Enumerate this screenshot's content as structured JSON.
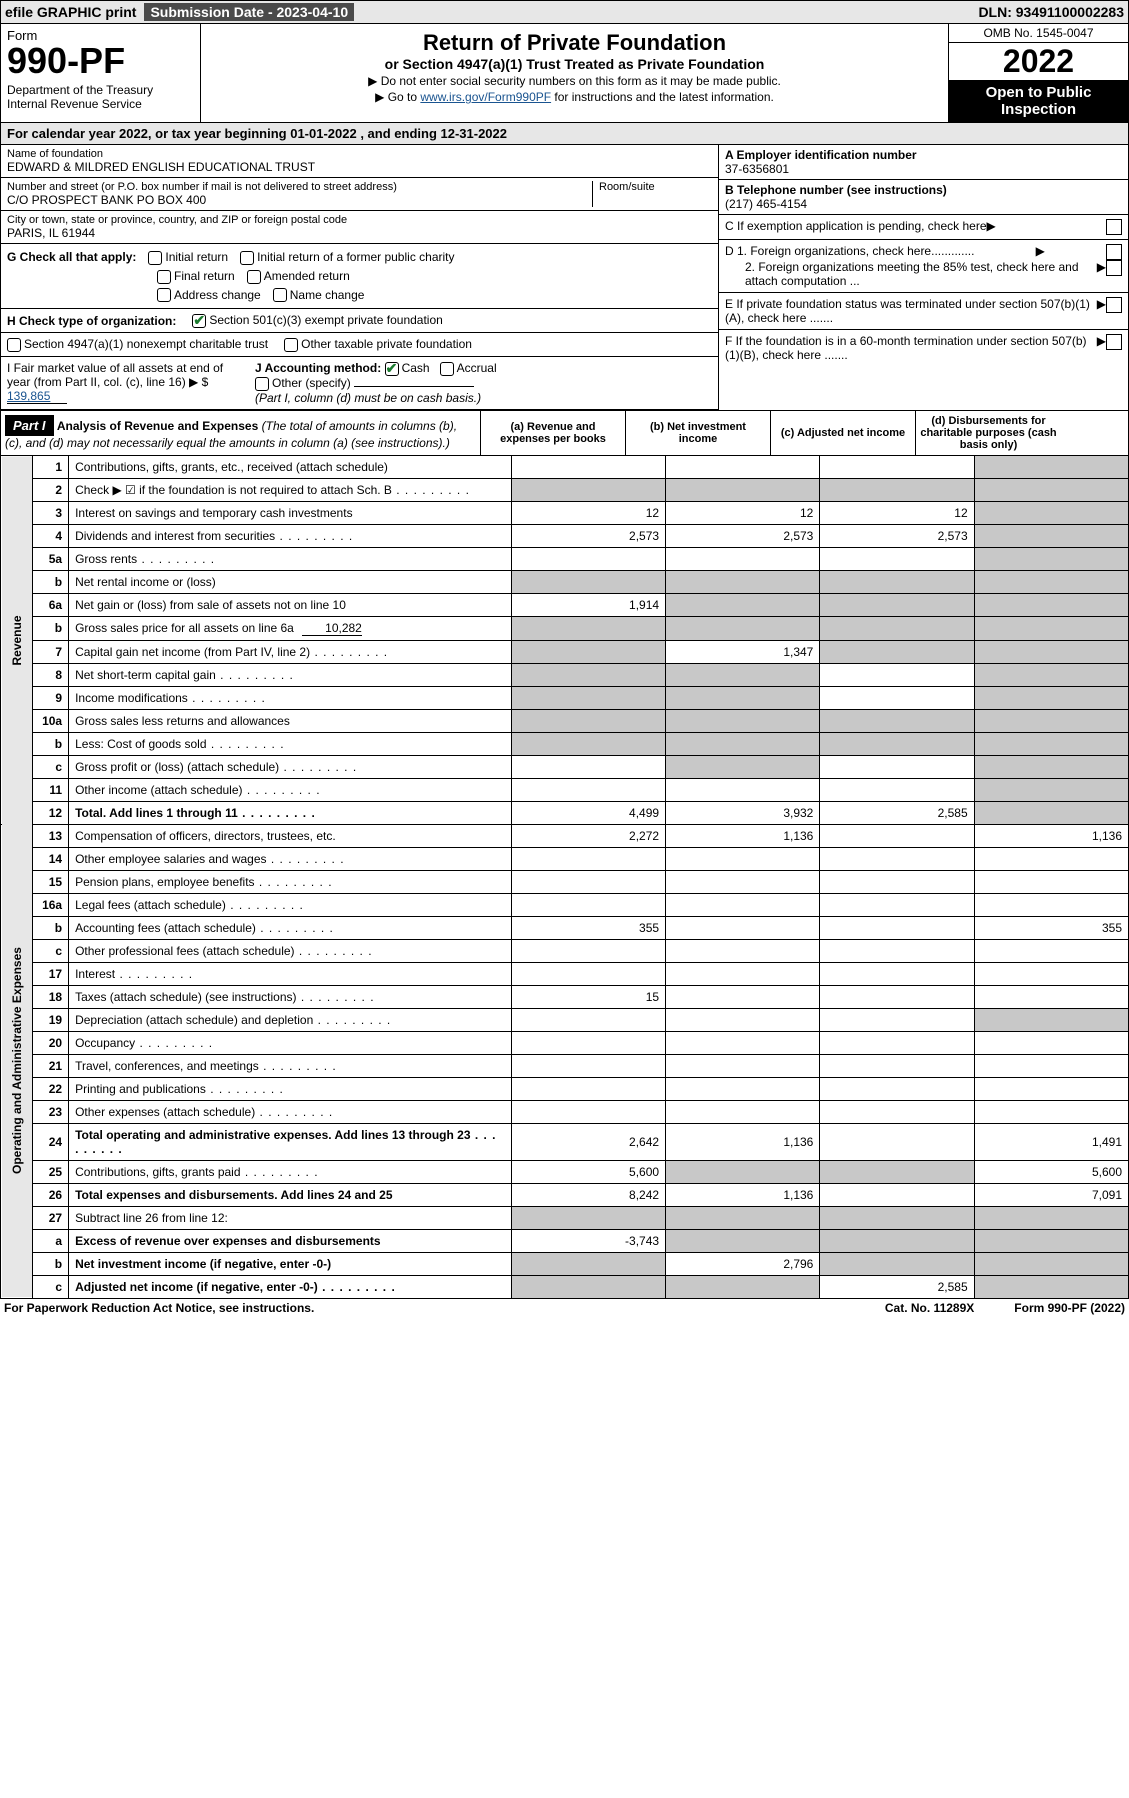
{
  "topbar": {
    "efile": "efile GRAPHIC print",
    "sub_label": "Submission Date - 2023-04-10",
    "dln": "DLN: 93491100002283"
  },
  "header": {
    "form_word": "Form",
    "form_num": "990-PF",
    "dept": "Department of the Treasury\nInternal Revenue Service",
    "title": "Return of Private Foundation",
    "subtitle": "or Section 4947(a)(1) Trust Treated as Private Foundation",
    "instr1": "▶ Do not enter social security numbers on this form as it may be made public.",
    "instr2_pre": "▶ Go to ",
    "instr2_link": "www.irs.gov/Form990PF",
    "instr2_post": " for instructions and the latest information.",
    "omb": "OMB No. 1545-0047",
    "year": "2022",
    "open": "Open to Public Inspection"
  },
  "cal": "For calendar year 2022, or tax year beginning 01-01-2022                               , and ending 12-31-2022",
  "info": {
    "name_label": "Name of foundation",
    "name": "EDWARD & MILDRED ENGLISH EDUCATIONAL TRUST",
    "addr_label": "Number and street (or P.O. box number if mail is not delivered to street address)",
    "addr": "C/O PROSPECT BANK PO BOX 400",
    "room_label": "Room/suite",
    "city_label": "City or town, state or province, country, and ZIP or foreign postal code",
    "city": "PARIS, IL  61944",
    "ein_label": "A Employer identification number",
    "ein": "37-6356801",
    "phone_label": "B Telephone number (see instructions)",
    "phone": "(217) 465-4154",
    "c": "C If exemption application is pending, check here",
    "d1": "D 1. Foreign organizations, check here.............",
    "d2": "2. Foreign organizations meeting the 85% test, check here and attach computation ...",
    "e": "E If private foundation status was terminated under section 507(b)(1)(A), check here .......",
    "f": "F If the foundation is in a 60-month termination under section 507(b)(1)(B), check here .......",
    "g": "G Check all that apply:",
    "g_opts": [
      "Initial return",
      "Initial return of a former public charity",
      "Final return",
      "Amended return",
      "Address change",
      "Name change"
    ],
    "h": "H Check type of organization:",
    "h1": "Section 501(c)(3) exempt private foundation",
    "h2": "Section 4947(a)(1) nonexempt charitable trust",
    "h3": "Other taxable private foundation",
    "i": "I Fair market value of all assets at end of year (from Part II, col. (c), line 16) ▶ $",
    "i_val": "139,865",
    "j": "J Accounting method:",
    "j_cash": "Cash",
    "j_accrual": "Accrual",
    "j_other": "Other (specify)",
    "j_note": "(Part I, column (d) must be on cash basis.)"
  },
  "part1": {
    "label": "Part I",
    "title": "Analysis of Revenue and Expenses",
    "note": "(The total of amounts in columns (b), (c), and (d) may not necessarily equal the amounts in column (a) (see instructions).)",
    "cols": {
      "a": "(a) Revenue and expenses per books",
      "b": "(b) Net investment income",
      "c": "(c) Adjusted net income",
      "d": "(d) Disbursements for charitable purposes (cash basis only)"
    }
  },
  "sides": {
    "rev": "Revenue",
    "exp": "Operating and Administrative Expenses"
  },
  "rows": [
    {
      "n": "1",
      "d": "Contributions, gifts, grants, etc., received (attach schedule)",
      "a": "",
      "b": null,
      "c": null,
      "dGrey": true
    },
    {
      "n": "2",
      "d": "Check ▶ ☑ if the foundation is not required to attach Sch. B",
      "lead": true,
      "a": null,
      "b": null,
      "c": null,
      "dGrey": true,
      "aGrey": true,
      "bGrey": true,
      "cGrey": true
    },
    {
      "n": "3",
      "d": "Interest on savings and temporary cash investments",
      "a": "12",
      "b": "12",
      "c": "12",
      "dGrey": true
    },
    {
      "n": "4",
      "d": "Dividends and interest from securities",
      "lead": true,
      "a": "2,573",
      "b": "2,573",
      "c": "2,573",
      "dGrey": true
    },
    {
      "n": "5a",
      "d": "Gross rents",
      "lead": true,
      "a": "",
      "b": "",
      "c": "",
      "dGrey": true
    },
    {
      "n": "b",
      "d": "Net rental income or (loss)",
      "inset": true,
      "a": null,
      "b": null,
      "c": null,
      "dGrey": true,
      "aGrey": true,
      "bGrey": true,
      "cGrey": true
    },
    {
      "n": "6a",
      "d": "Net gain or (loss) from sale of assets not on line 10",
      "a": "1,914",
      "b": null,
      "c": null,
      "dGrey": true,
      "bGrey": true,
      "cGrey": true
    },
    {
      "n": "b",
      "d": "Gross sales price for all assets on line 6a",
      "inset": true,
      "inlineVal": "10,282",
      "a": null,
      "b": null,
      "c": null,
      "dGrey": true,
      "aGrey": true,
      "bGrey": true,
      "cGrey": true
    },
    {
      "n": "7",
      "d": "Capital gain net income (from Part IV, line 2)",
      "lead": true,
      "a": null,
      "b": "1,347",
      "c": null,
      "dGrey": true,
      "aGrey": true,
      "cGrey": true
    },
    {
      "n": "8",
      "d": "Net short-term capital gain",
      "lead": true,
      "a": null,
      "b": null,
      "c": "",
      "dGrey": true,
      "aGrey": true,
      "bGrey": true
    },
    {
      "n": "9",
      "d": "Income modifications",
      "lead": true,
      "a": null,
      "b": null,
      "c": "",
      "dGrey": true,
      "aGrey": true,
      "bGrey": true
    },
    {
      "n": "10a",
      "d": "Gross sales less returns and allowances",
      "inset": true,
      "a": null,
      "b": null,
      "c": null,
      "dGrey": true,
      "aGrey": true,
      "bGrey": true,
      "cGrey": true
    },
    {
      "n": "b",
      "d": "Less: Cost of goods sold",
      "inset": true,
      "lead": true,
      "a": null,
      "b": null,
      "c": null,
      "dGrey": true,
      "aGrey": true,
      "bGrey": true,
      "cGrey": true
    },
    {
      "n": "c",
      "d": "Gross profit or (loss) (attach schedule)",
      "lead": true,
      "a": "",
      "b": null,
      "c": "",
      "dGrey": true,
      "bGrey": true
    },
    {
      "n": "11",
      "d": "Other income (attach schedule)",
      "lead": true,
      "a": "",
      "b": "",
      "c": "",
      "dGrey": true
    },
    {
      "n": "12",
      "d": "Total. Add lines 1 through 11",
      "bold": true,
      "lead": true,
      "a": "4,499",
      "b": "3,932",
      "c": "2,585",
      "dGrey": true
    },
    {
      "n": "13",
      "d": "Compensation of officers, directors, trustees, etc.",
      "a": "2,272",
      "b": "1,136",
      "c": "",
      "dv": "1,136"
    },
    {
      "n": "14",
      "d": "Other employee salaries and wages",
      "lead": true,
      "a": "",
      "b": "",
      "c": "",
      "dv": ""
    },
    {
      "n": "15",
      "d": "Pension plans, employee benefits",
      "lead": true,
      "a": "",
      "b": "",
      "c": "",
      "dv": ""
    },
    {
      "n": "16a",
      "d": "Legal fees (attach schedule)",
      "lead": true,
      "a": "",
      "b": "",
      "c": "",
      "dv": ""
    },
    {
      "n": "b",
      "d": "Accounting fees (attach schedule)",
      "lead": true,
      "a": "355",
      "b": "",
      "c": "",
      "dv": "355"
    },
    {
      "n": "c",
      "d": "Other professional fees (attach schedule)",
      "lead": true,
      "a": "",
      "b": "",
      "c": "",
      "dv": ""
    },
    {
      "n": "17",
      "d": "Interest",
      "lead": true,
      "a": "",
      "b": "",
      "c": "",
      "dv": ""
    },
    {
      "n": "18",
      "d": "Taxes (attach schedule) (see instructions)",
      "lead": true,
      "a": "15",
      "b": "",
      "c": "",
      "dv": ""
    },
    {
      "n": "19",
      "d": "Depreciation (attach schedule) and depletion",
      "lead": true,
      "a": "",
      "b": "",
      "c": "",
      "dGrey": true
    },
    {
      "n": "20",
      "d": "Occupancy",
      "lead": true,
      "a": "",
      "b": "",
      "c": "",
      "dv": ""
    },
    {
      "n": "21",
      "d": "Travel, conferences, and meetings",
      "lead": true,
      "a": "",
      "b": "",
      "c": "",
      "dv": ""
    },
    {
      "n": "22",
      "d": "Printing and publications",
      "lead": true,
      "a": "",
      "b": "",
      "c": "",
      "dv": ""
    },
    {
      "n": "23",
      "d": "Other expenses (attach schedule)",
      "lead": true,
      "a": "",
      "b": "",
      "c": "",
      "dv": ""
    },
    {
      "n": "24",
      "d": "Total operating and administrative expenses. Add lines 13 through 23",
      "bold": true,
      "lead": true,
      "a": "2,642",
      "b": "1,136",
      "c": "",
      "dv": "1,491"
    },
    {
      "n": "25",
      "d": "Contributions, gifts, grants paid",
      "lead": true,
      "a": "5,600",
      "b": null,
      "c": null,
      "dv": "5,600",
      "bGrey": true,
      "cGrey": true
    },
    {
      "n": "26",
      "d": "Total expenses and disbursements. Add lines 24 and 25",
      "bold": true,
      "a": "8,242",
      "b": "1,136",
      "c": "",
      "dv": "7,091"
    },
    {
      "n": "27",
      "d": "Subtract line 26 from line 12:",
      "a": null,
      "b": null,
      "c": null,
      "dGrey": true,
      "aGrey": true,
      "bGrey": true,
      "cGrey": true
    },
    {
      "n": "a",
      "d": "Excess of revenue over expenses and disbursements",
      "bold": true,
      "a": "-3,743",
      "b": null,
      "c": null,
      "dGrey": true,
      "bGrey": true,
      "cGrey": true
    },
    {
      "n": "b",
      "d": "Net investment income (if negative, enter -0-)",
      "bold": true,
      "a": null,
      "b": "2,796",
      "c": null,
      "dGrey": true,
      "aGrey": true,
      "cGrey": true
    },
    {
      "n": "c",
      "d": "Adjusted net income (if negative, enter -0-)",
      "bold": true,
      "lead": true,
      "a": null,
      "b": null,
      "c": "2,585",
      "dGrey": true,
      "aGrey": true,
      "bGrey": true
    }
  ],
  "footer": {
    "pra": "For Paperwork Reduction Act Notice, see instructions.",
    "cat": "Cat. No. 11289X",
    "form": "Form 990-PF (2022)"
  }
}
